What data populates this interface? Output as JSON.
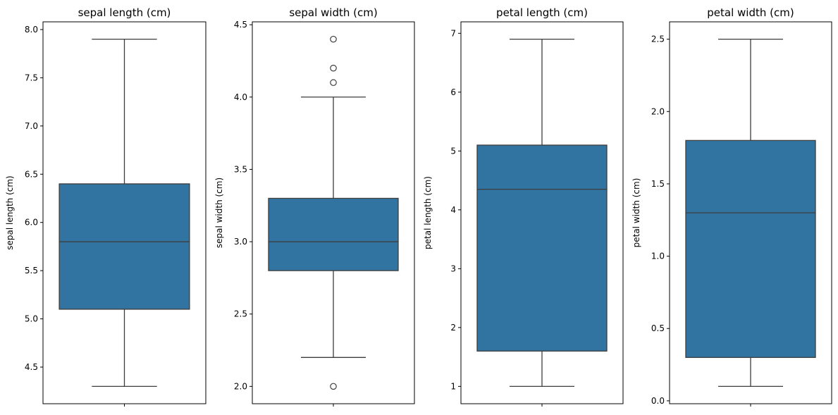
{
  "chart_data": [
    {
      "type": "box",
      "title": "sepal length (cm)",
      "ylabel": "sepal length (cm)",
      "ylim": [
        4.12,
        8.08
      ],
      "yticks": [
        4.5,
        5.0,
        5.5,
        6.0,
        6.5,
        7.0,
        7.5,
        8.0
      ],
      "ytick_labels": [
        "4.5",
        "5.0",
        "5.5",
        "6.0",
        "6.5",
        "7.0",
        "7.5",
        "8.0"
      ],
      "box": {
        "whisker_low": 4.3,
        "q1": 5.1,
        "median": 5.8,
        "q3": 6.4,
        "whisker_high": 7.9
      },
      "outliers": [],
      "color": "#3274a1"
    },
    {
      "type": "box",
      "title": "sepal width (cm)",
      "ylabel": "sepal width (cm)",
      "ylim": [
        1.88,
        4.52
      ],
      "yticks": [
        2.0,
        2.5,
        3.0,
        3.5,
        4.0,
        4.5
      ],
      "ytick_labels": [
        "2.0",
        "2.5",
        "3.0",
        "3.5",
        "4.0",
        "4.5"
      ],
      "box": {
        "whisker_low": 2.2,
        "q1": 2.8,
        "median": 3.0,
        "q3": 3.3,
        "whisker_high": 4.0
      },
      "outliers": [
        2.0,
        4.1,
        4.2,
        4.4
      ],
      "color": "#3274a1"
    },
    {
      "type": "box",
      "title": "petal length (cm)",
      "ylabel": "petal length (cm)",
      "ylim": [
        0.705,
        7.195
      ],
      "yticks": [
        1,
        2,
        3,
        4,
        5,
        6,
        7
      ],
      "ytick_labels": [
        "1",
        "2",
        "3",
        "4",
        "5",
        "6",
        "7"
      ],
      "box": {
        "whisker_low": 1.0,
        "q1": 1.6,
        "median": 4.35,
        "q3": 5.1,
        "whisker_high": 6.9
      },
      "outliers": [],
      "color": "#3274a1"
    },
    {
      "type": "box",
      "title": "petal width (cm)",
      "ylabel": "petal width (cm)",
      "ylim": [
        -0.02,
        2.62
      ],
      "yticks": [
        0.0,
        0.5,
        1.0,
        1.5,
        2.0,
        2.5
      ],
      "ytick_labels": [
        "0.0",
        "0.5",
        "1.0",
        "1.5",
        "2.0",
        "2.5"
      ],
      "box": {
        "whisker_low": 0.1,
        "q1": 0.3,
        "median": 1.3,
        "q3": 1.8,
        "whisker_high": 2.5
      },
      "outliers": [],
      "color": "#3274a1"
    }
  ]
}
